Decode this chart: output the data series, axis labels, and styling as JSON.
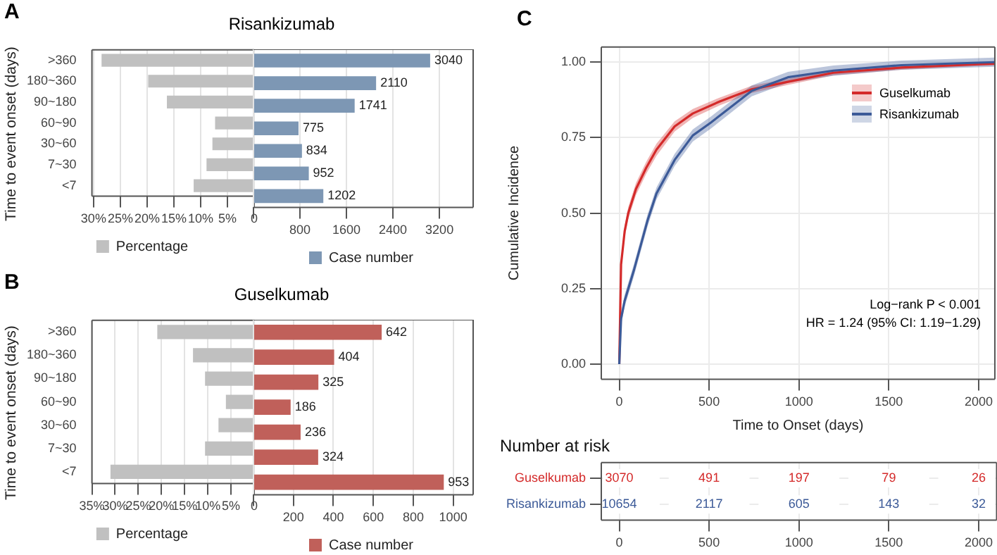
{
  "chart_data": [
    {
      "type": "bar",
      "orientation": "horizontal",
      "title": "Risankizumab",
      "ylabel": "Time to event onset (days)",
      "annotations": [
        "A"
      ],
      "categories": [
        ">360",
        "180~360",
        "90~180",
        "60~90",
        "30~60",
        "7~30",
        "<7"
      ],
      "series": [
        {
          "name": "Percentage",
          "color": "#c0c0c0",
          "values": [
            28.5,
            19.8,
            16.3,
            7.3,
            7.8,
            8.9,
            11.3
          ]
        }
      ],
      "xlim": [
        30.3,
        0
      ],
      "xticks": [
        {
          "value": 30,
          "label": "30%"
        },
        {
          "value": 25,
          "label": "25%"
        },
        {
          "value": 20,
          "label": "20%"
        },
        {
          "value": 15,
          "label": "15%"
        },
        {
          "value": 10,
          "label": "10%"
        },
        {
          "value": 5,
          "label": "5%"
        },
        0
      ],
      "grid": "x",
      "legend": "bottom"
    },
    {
      "type": "bar",
      "orientation": "horizontal",
      "categories": [
        null,
        null,
        null,
        null,
        null,
        null,
        null
      ],
      "series": [
        {
          "name": "Case number",
          "color": "#7d97b4",
          "values": [
            3040,
            2110,
            1741,
            775,
            834,
            952,
            1202
          ]
        }
      ],
      "xlim": [
        0,
        3780
      ],
      "xticks": [
        {
          "value": 0,
          "label": null
        },
        800,
        1600,
        2400,
        3200
      ],
      "grid": "x",
      "legend": "bottom",
      "data_labels": true,
      "tick_labels": "x"
    },
    {
      "type": "bar",
      "orientation": "horizontal",
      "title": "Guselkumab",
      "ylabel": "Time to event onset (days)",
      "annotations": [
        "B"
      ],
      "categories": [
        ">360",
        "180~360",
        "90~180",
        "60~90",
        "30~60",
        "7~30",
        "<7"
      ],
      "series": [
        {
          "name": "Percentage",
          "color": "#c0c0c0",
          "values": [
            20.9,
            13.2,
            10.6,
            6.1,
            7.7,
            10.6,
            31.0
          ]
        }
      ],
      "xlim": [
        35,
        0
      ],
      "xticks": [
        {
          "value": 35,
          "label": "35%"
        },
        {
          "value": 30,
          "label": "30%"
        },
        {
          "value": 25,
          "label": "25%"
        },
        {
          "value": 20,
          "label": "20%"
        },
        {
          "value": 15,
          "label": "15%"
        },
        {
          "value": 10,
          "label": "10%"
        },
        {
          "value": 5,
          "label": "5%"
        },
        0
      ],
      "grid": "x",
      "legend": "bottom"
    },
    {
      "type": "bar",
      "orientation": "horizontal",
      "categories": [
        null,
        null,
        null,
        null,
        null,
        null,
        null
      ],
      "series": [
        {
          "name": "Case number",
          "color": "#c0605a",
          "values": [
            642,
            404,
            325,
            186,
            236,
            324,
            953
          ]
        }
      ],
      "xlim": [
        0,
        1100
      ],
      "xticks": [
        {
          "value": 0,
          "label": null
        },
        200,
        400,
        600,
        800,
        1000
      ],
      "grid": "x",
      "legend": "bottom",
      "data_labels": true,
      "tick_labels": "x"
    },
    {
      "type": "line",
      "annotations": [
        "C",
        "Log−rank P < 0.001",
        "HR = 1.24 (95% CI: 1.19−1.29)"
      ],
      "xlabel": "Time to Onset (days)",
      "ylabel": "Cumulative Incidence",
      "series": [
        {
          "name": "Guselkumab",
          "color": "#d42a2a",
          "x": [
            0,
            10,
            30,
            50,
            93,
            150,
            207,
            308,
            409,
            560,
            737,
            939,
            1192,
            1571,
            2000,
            2088
          ],
          "values": [
            0,
            0.33,
            0.44,
            0.5,
            0.58,
            0.65,
            0.71,
            0.787,
            0.83,
            0.87,
            0.91,
            0.935,
            0.965,
            0.982,
            0.993,
            0.995
          ],
          "lower": [
            0,
            0.31,
            0.42,
            0.48,
            0.56,
            0.63,
            0.69,
            0.77,
            0.815,
            0.857,
            0.898,
            0.925,
            0.956,
            0.975,
            0.987,
            0.989
          ],
          "upper": [
            0,
            0.35,
            0.46,
            0.52,
            0.6,
            0.67,
            0.73,
            0.804,
            0.845,
            0.883,
            0.922,
            0.945,
            0.974,
            0.989,
            0.999,
            1.0
          ]
        },
        {
          "name": "Risankizumab",
          "color": "#3c5a98",
          "x": [
            0,
            10,
            30,
            81,
            157,
            207,
            308,
            409,
            510,
            737,
            939,
            1192,
            1571,
            2088
          ],
          "values": [
            0,
            0.15,
            0.21,
            0.31,
            0.475,
            0.565,
            0.676,
            0.757,
            0.8,
            0.905,
            0.95,
            0.972,
            0.99,
            1.0
          ],
          "lower": [
            0,
            0.13,
            0.19,
            0.29,
            0.455,
            0.545,
            0.656,
            0.737,
            0.78,
            0.887,
            0.932,
            0.955,
            0.975,
            0.985
          ],
          "upper": [
            0,
            0.17,
            0.23,
            0.33,
            0.495,
            0.585,
            0.696,
            0.777,
            0.82,
            0.923,
            0.968,
            0.989,
            1.005,
            1.015
          ]
        }
      ],
      "xlim": [
        -100,
        2090
      ],
      "xticks": [
        0,
        500,
        1000,
        1500,
        2000
      ],
      "ylim": [
        -0.05,
        1.05
      ],
      "yticks": [
        {
          "value": 0,
          "label": "0.00"
        },
        {
          "value": 0.25,
          "label": "0.25"
        },
        {
          "value": 0.5,
          "label": "0.50"
        },
        {
          "value": 0.75,
          "label": "0.75"
        },
        {
          "value": 1,
          "label": "1.00"
        }
      ],
      "grid": true,
      "legend": "top right",
      "marker": "none"
    },
    {
      "type": "heatmap",
      "title": "Number at risk",
      "categories": [
        "0",
        "500",
        "1000",
        "1500",
        "2000"
      ],
      "y_categories": [
        "Guselkumab",
        "Risankizumab"
      ],
      "cells": [
        [
          3070,
          491,
          197,
          79,
          26
        ],
        [
          10654,
          2117,
          605,
          143,
          32
        ]
      ],
      "data_labels": true,
      "grid": true
    }
  ]
}
